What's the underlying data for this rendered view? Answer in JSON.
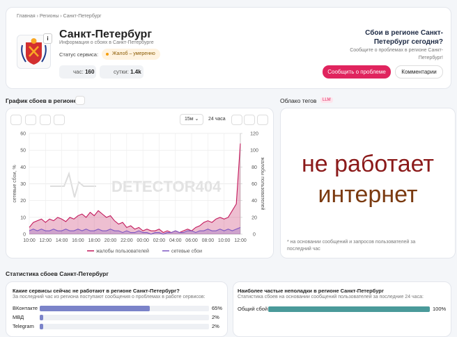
{
  "breadcrumb": [
    "Главная",
    "Регионы",
    "Санкт-Петербург"
  ],
  "header": {
    "title": "Санкт-Петербург",
    "subtitle": "Информация о сбоях в Санкт-Петербурге",
    "status_label": "Статус сервиса:",
    "status": "Жалоб – умеренно",
    "stats": [
      {
        "label": "час:",
        "value": 160
      },
      {
        "label": "сутки:",
        "value": "1.4k"
      }
    ],
    "cta_title": "Сбои в регионе Санкт-Петербург сегодня?",
    "cta_text": "Сообщите о проблемах в регионе Санкт-Петербург!",
    "buttons": [
      "Сообщить о проблеме",
      "Комментарии"
    ]
  },
  "chart_section": {
    "title": "График сбоев в регионе",
    "interval": "15м",
    "period": "24 часа",
    "watermark": "DETECTOR404"
  },
  "chart_data": {
    "type": "line",
    "grid": true,
    "x": [
      0,
      0.5,
      1,
      1.5,
      2,
      2.5,
      3,
      3.5,
      4,
      4.5,
      5,
      5.5,
      6,
      6.5,
      7,
      7.5,
      8,
      8.5,
      9,
      9.5,
      10,
      10.5,
      11,
      11.5,
      12,
      12.5,
      13,
      13.5,
      14,
      14.5,
      15,
      15.5,
      16,
      16.5,
      17,
      17.5,
      18,
      18.5,
      19,
      19.5,
      20,
      20.5,
      21,
      21.5,
      22,
      22.5,
      23,
      23.5,
      24,
      24.5,
      25,
      25.5,
      26
    ],
    "xlim": [
      0,
      26
    ],
    "xticks": [
      {
        "value": 0,
        "label": "10:00"
      },
      {
        "value": 2,
        "label": "12:00"
      },
      {
        "value": 4,
        "label": "14:00"
      },
      {
        "value": 6,
        "label": "16:00"
      },
      {
        "value": 8,
        "label": "18:00"
      },
      {
        "value": 10,
        "label": "20:00"
      },
      {
        "value": 12,
        "label": "22:00"
      },
      {
        "value": 14,
        "label": "00:00"
      },
      {
        "value": 16,
        "label": "02:00"
      },
      {
        "value": 18,
        "label": "04:00"
      },
      {
        "value": 20,
        "label": "06:00"
      },
      {
        "value": 22,
        "label": "08:00"
      },
      {
        "value": 24,
        "label": "10:00"
      },
      {
        "value": 26,
        "label": "12:00"
      }
    ],
    "ylim": [
      0,
      60
    ],
    "yticks": [
      0,
      10,
      20,
      30,
      40,
      50,
      60
    ],
    "ylabel": "сетевые сбои, %",
    "y2lim": [
      0,
      120
    ],
    "y2ticks": [
      0,
      20,
      40,
      60,
      80,
      100,
      120
    ],
    "y2label": "жалобы пользователей",
    "series": [
      {
        "name": "жалобы пользователей",
        "color": "#c2185b",
        "axis": "y2",
        "values": [
          8,
          14,
          16,
          18,
          14,
          18,
          16,
          20,
          18,
          15,
          20,
          18,
          22,
          24,
          20,
          26,
          22,
          28,
          24,
          20,
          22,
          16,
          12,
          14,
          8,
          10,
          6,
          8,
          4,
          6,
          4,
          4,
          6,
          2,
          4,
          2,
          4,
          2,
          4,
          6,
          4,
          8,
          10,
          14,
          16,
          14,
          18,
          20,
          18,
          20,
          28,
          36,
          108
        ]
      },
      {
        "name": "сетевые сбои",
        "color": "#7e57c2",
        "values": [
          2,
          3,
          2,
          3,
          2,
          2,
          3,
          2,
          2,
          3,
          2,
          2,
          3,
          2,
          3,
          2,
          2,
          3,
          2,
          2,
          3,
          2,
          2,
          1,
          2,
          1,
          1,
          2,
          1,
          1,
          0,
          1,
          1,
          0,
          1,
          1,
          2,
          1,
          1,
          2,
          2,
          1,
          2,
          2,
          3,
          2,
          2,
          3,
          2,
          3,
          2,
          3,
          4
        ]
      }
    ]
  },
  "tags": {
    "title": "Облако тегов",
    "badge": "LLM",
    "words": [
      "не работает",
      "интернет"
    ],
    "note": "* на основании сообщений и запросов пользователей за последний час"
  },
  "stats": {
    "title": "Статистика сбоев Санкт-Петербург",
    "services": {
      "title": "Какие сервисы сейчас не работают в регионе Санкт-Петербург?",
      "subtitle": "За последний час из региона поступают сообщения о проблемах в работе сервисов:",
      "items": [
        {
          "name": "ВКонтакте",
          "value": 65,
          "label": "65%"
        },
        {
          "name": "МВД",
          "value": 2,
          "label": "2%"
        },
        {
          "name": "Telegram",
          "value": 2,
          "label": "2%"
        }
      ]
    },
    "issues": {
      "title": "Наиболее частые неполадки в регионе Санкт-Петербург",
      "subtitle": "Статистика сбоев на основании сообщений пользователей за последние 24 часа:",
      "items": [
        {
          "name": "Общий сбой",
          "value": 100,
          "label": "100%"
        }
      ]
    }
  }
}
